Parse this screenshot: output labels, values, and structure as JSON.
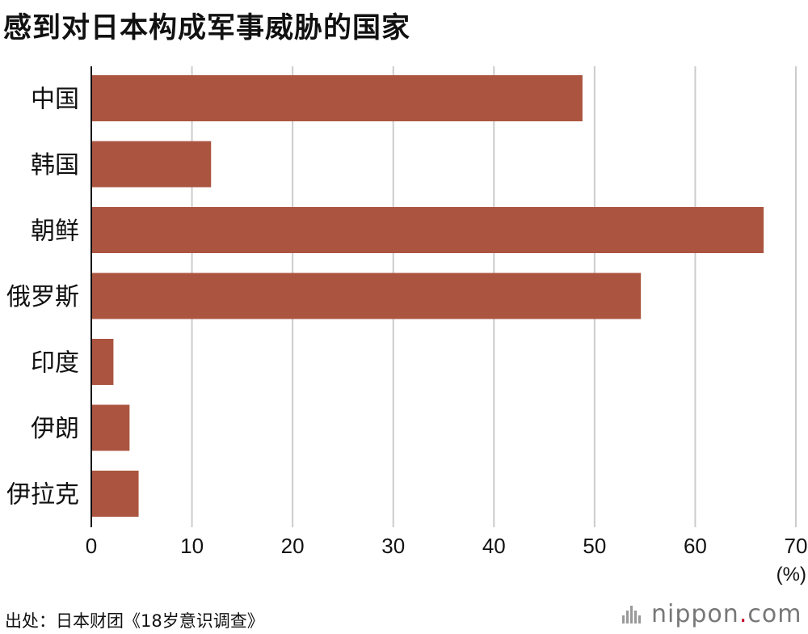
{
  "title": "感到对日本构成军事威胁的国家",
  "source": "出处：日本财团《18岁意识调查》",
  "brand": {
    "name": "nippon",
    "dot": ".",
    "tld": "com"
  },
  "colors": {
    "bar": "#ab5540",
    "grid": "#cccccc",
    "axis": "#111111",
    "brand_dot": "#c8102e"
  },
  "chart_data": {
    "type": "bar",
    "orientation": "horizontal",
    "categories": [
      "中国",
      "韩国",
      "朝鲜",
      "俄罗斯",
      "印度",
      "伊朗",
      "伊拉克"
    ],
    "values": [
      48.8,
      11.9,
      66.8,
      54.6,
      2.2,
      3.8,
      4.7
    ],
    "xlim": [
      0,
      70
    ],
    "xticks": [
      "0",
      "10",
      "20",
      "30",
      "40",
      "50",
      "60",
      "70"
    ],
    "xunit": "(%)",
    "grid": true,
    "legend": "none"
  }
}
